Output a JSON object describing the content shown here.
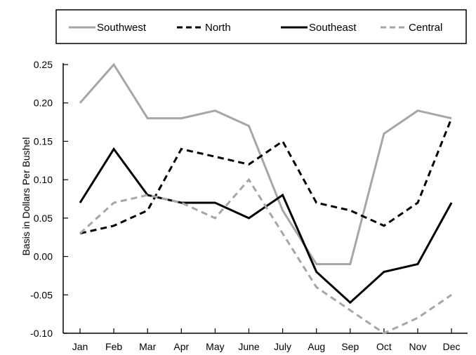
{
  "chart_data": {
    "type": "line",
    "ylabel": "Basis in Dollars Per Bushel",
    "xlabel": "",
    "categories": [
      "Jan",
      "Feb",
      "Mar",
      "Apr",
      "May",
      "June",
      "July",
      "Aug",
      "Sep",
      "Oct",
      "Nov",
      "Dec"
    ],
    "ylim": [
      -0.1,
      0.25
    ],
    "yticks": [
      "-0.10",
      "-0.05",
      "0.00",
      "0.05",
      "0.10",
      "0.15",
      "0.20",
      "0.25"
    ],
    "grid": false,
    "legend_position": "top",
    "series": [
      {
        "name": "Southwest",
        "color": "#a6a6a6",
        "style": "solid",
        "values": [
          0.2,
          0.25,
          0.18,
          0.18,
          0.19,
          0.17,
          0.06,
          -0.01,
          -0.01,
          0.16,
          0.19,
          0.18
        ]
      },
      {
        "name": "North",
        "color": "#000000",
        "style": "dashed",
        "values": [
          0.03,
          0.04,
          0.06,
          0.14,
          0.13,
          0.12,
          0.15,
          0.07,
          0.06,
          0.04,
          0.07,
          0.18
        ]
      },
      {
        "name": "Southeast",
        "color": "#000000",
        "style": "solid",
        "values": [
          0.07,
          0.14,
          0.08,
          0.07,
          0.07,
          0.05,
          0.08,
          -0.02,
          -0.06,
          -0.02,
          -0.01,
          0.07
        ]
      },
      {
        "name": "Central",
        "color": "#a6a6a6",
        "style": "dashed",
        "values": [
          0.03,
          0.07,
          0.08,
          0.07,
          0.05,
          0.1,
          0.03,
          -0.04,
          -0.07,
          -0.1,
          -0.08,
          -0.05
        ]
      }
    ]
  }
}
